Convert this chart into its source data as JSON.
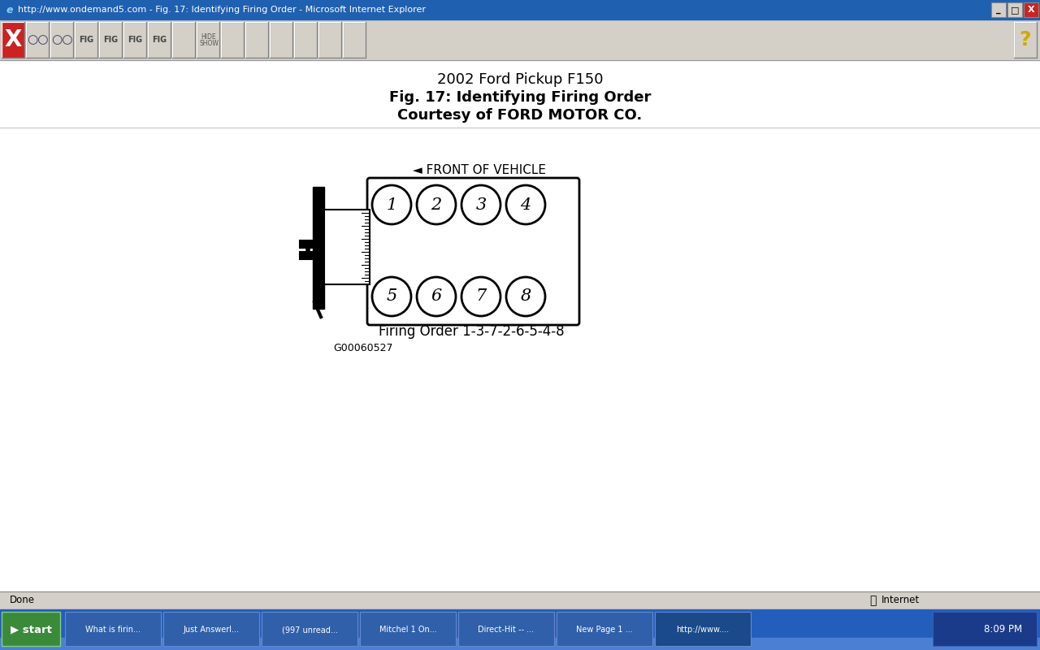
{
  "title_line1": "2002 Ford Pickup F150",
  "title_line2": "Fig. 17: Identifying Firing Order",
  "title_line3": "Courtesy of FORD MOTOR CO.",
  "front_label": "◄ FRONT OF VEHICLE",
  "firing_order_label": "Firing Order 1-3-7-2-6-5-4-8",
  "figure_id": "G00060527",
  "cylinders_top": [
    "1",
    "2",
    "3",
    "4"
  ],
  "cylinders_bottom": [
    "5",
    "6",
    "7",
    "8"
  ],
  "bg_color": "#d4d0c8",
  "title_bar_color": "#2060b0",
  "title_bar_text_color": "#ffffff",
  "toolbar_color": "#d4d0c8",
  "content_bg": "#ffffff",
  "browser_title": "http://www.ondemand5.com - Fig. 17: Identifying Firing Order - Microsoft Internet Explorer",
  "taskbar_color": "#245ebc",
  "taskbar_text": "#ffffff",
  "statusbar_color": "#d4d0c8",
  "taskbar_items": [
    "What is firin...",
    "Just Answerl...",
    "(997 unread...",
    "Mitchel 1 On...",
    "Direct-Hit -- ...",
    "New Page 1 ...",
    "http://www...."
  ]
}
